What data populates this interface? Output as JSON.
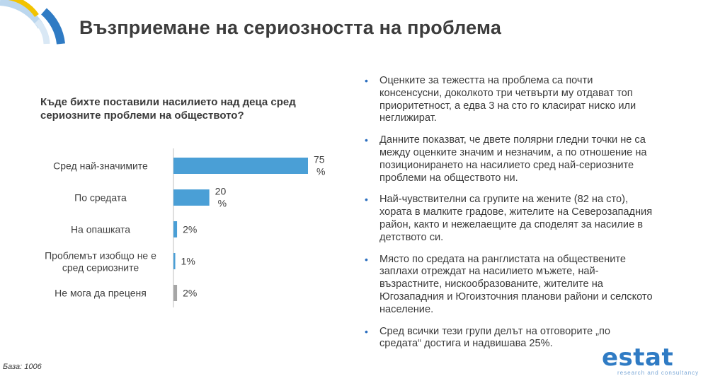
{
  "title": "Възприемане на сериозността на проблема",
  "chart_data": {
    "type": "bar",
    "orientation": "horizontal",
    "title": "Къде бихте поставили насилието над деца сред сериозните проблеми на обществото?",
    "categories": [
      "Сред най-значимите",
      "По средата",
      "На опашката",
      "Проблемът изобщо не е сред сериозните",
      "Не мога да преценя"
    ],
    "values": [
      75,
      20,
      2,
      1,
      2
    ],
    "value_labels": [
      "75 %",
      "20 %",
      "2%",
      "1%",
      "2%"
    ],
    "xlim": [
      0,
      100
    ],
    "colors": [
      "#4a9fd6",
      "#4a9fd6",
      "#4a9fd6",
      "#4a9fd6",
      "#a6a6a6"
    ],
    "grid": false,
    "legend": "none"
  },
  "bullets": [
    "Оценките за тежестта на проблема са почти консенсусни, доколкото три четвърти му отдават топ приоритетност, а едва 3 на сто го класират ниско или неглижират.",
    "Данните показват, че двете полярни гледни точки не са между оценките значим и незначим, а по отношение на позиционирането на насилието сред най-сериозните проблеми на обществото ни.",
    "Най-чувствителни са групите на жените (82 на сто), хората в малките градове, жителите на Северозападния район, както и нежелаещите да споделят за насилие в детството си.",
    "Място по средата на ранглистата на обществените заплахи отреждат на насилието мъжете, най-възрастните, нискообразованите, жителите на Югозападния и Югоизточния планови райони и селското население.",
    "Сред всички тези групи делът на отговорите „по средата“ достига и надвишава 25%."
  ],
  "base_note": "База: 1006",
  "brand": {
    "name": "estat",
    "tagline": "research and consultancy"
  },
  "colors": {
    "accent": "#2f7bc4",
    "bar": "#4a9fd6",
    "bar_muted": "#a6a6a6"
  }
}
